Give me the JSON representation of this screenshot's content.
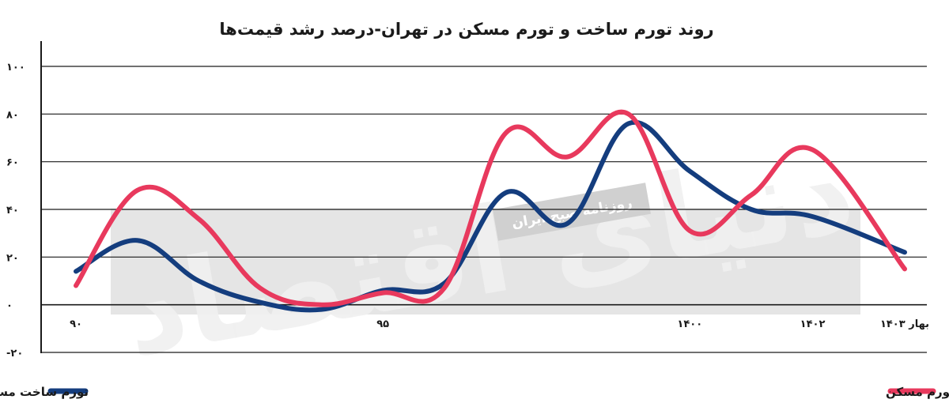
{
  "chart_data": {
    "type": "line",
    "title": "روند تورم ساخت و تورم مسکن در تهران-درصد رشد قیمت‌ها",
    "ylim": [
      -20,
      100
    ],
    "y_ticks": [
      {
        "value": 100,
        "label": "۱۰۰"
      },
      {
        "value": 80,
        "label": "۸۰"
      },
      {
        "value": 60,
        "label": "۶۰"
      },
      {
        "value": 40,
        "label": "۴۰"
      },
      {
        "value": 20,
        "label": "۲۰"
      },
      {
        "value": 0,
        "label": "۰"
      },
      {
        "value": -20,
        "label": "-۲۰"
      }
    ],
    "x_range": [
      90,
      1403.5
    ],
    "x_ticks": [
      {
        "value": 90,
        "label": "۹۰"
      },
      {
        "value": 95,
        "label": "۹۵"
      },
      {
        "value": 1400,
        "label": "۱۴۰۰"
      },
      {
        "value": 1402,
        "label": "۱۴۰۲"
      },
      {
        "value": 1403.5,
        "label": "بهار ۱۴۰۳"
      }
    ],
    "grid": true,
    "legend_position": "bottom",
    "series": [
      {
        "name": "تورم ساخت مسکن در تهران (درصد تغییرات شاخص قیمت مصالح ساختمانی و خدمات نسبت به مدت مشابه سال قبل)",
        "color": "#143d7e",
        "points": [
          [
            90,
            14
          ],
          [
            91,
            27
          ],
          [
            92,
            10
          ],
          [
            93,
            1
          ],
          [
            94,
            -2
          ],
          [
            95,
            6
          ],
          [
            96,
            9
          ],
          [
            97,
            47
          ],
          [
            98,
            34
          ],
          [
            99,
            76
          ],
          [
            1400,
            56
          ],
          [
            1401,
            40
          ],
          [
            1402,
            37
          ],
          [
            1403.5,
            22
          ]
        ]
      },
      {
        "name": "تورم مسکن",
        "color": "#e8395d",
        "points": [
          [
            90,
            8
          ],
          [
            91,
            48
          ],
          [
            92,
            36
          ],
          [
            93,
            7
          ],
          [
            94,
            0
          ],
          [
            95,
            5
          ],
          [
            96,
            7
          ],
          [
            97,
            72
          ],
          [
            98,
            62
          ],
          [
            99,
            80
          ],
          [
            1400,
            31
          ],
          [
            1401,
            46
          ],
          [
            1402,
            65
          ],
          [
            1403.5,
            15
          ]
        ]
      }
    ]
  },
  "watermark": {
    "caption": "روزنامه صبح ایران",
    "logo_text": "دنیای اقتصاد"
  }
}
